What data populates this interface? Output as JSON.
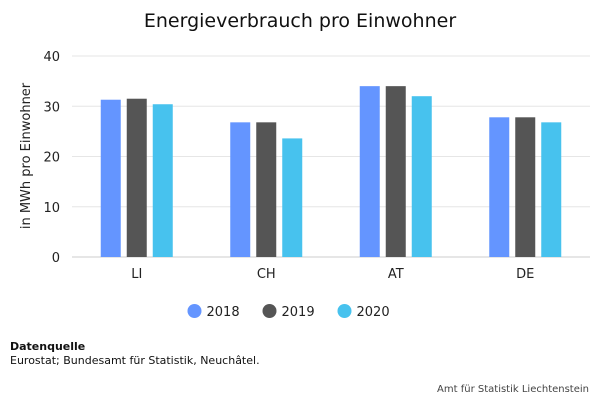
{
  "chart_data": {
    "type": "bar",
    "title": "Energieverbrauch pro Einwohner",
    "ylabel": "in MWh pro Einwohner",
    "xlabel": "",
    "categories": [
      "LI",
      "CH",
      "AT",
      "DE"
    ],
    "series": [
      {
        "name": "2018",
        "color": "#6495ff",
        "values": [
          31.3,
          26.8,
          34.0,
          27.8
        ]
      },
      {
        "name": "2019",
        "color": "#555555",
        "values": [
          31.5,
          26.8,
          34.0,
          27.8
        ]
      },
      {
        "name": "2020",
        "color": "#47c2ee",
        "values": [
          30.4,
          23.6,
          32.0,
          26.8
        ]
      }
    ],
    "ylim": [
      0,
      40
    ],
    "yticks": [
      0,
      10,
      20,
      30,
      40
    ],
    "grid": true,
    "legend_position": "bottom"
  },
  "footer": {
    "source_heading": "Datenquelle",
    "source_text": "Eurostat; Bundesamt für Statistik, Neuchâtel.",
    "credit": "Amt für Statistik Liechtenstein"
  }
}
